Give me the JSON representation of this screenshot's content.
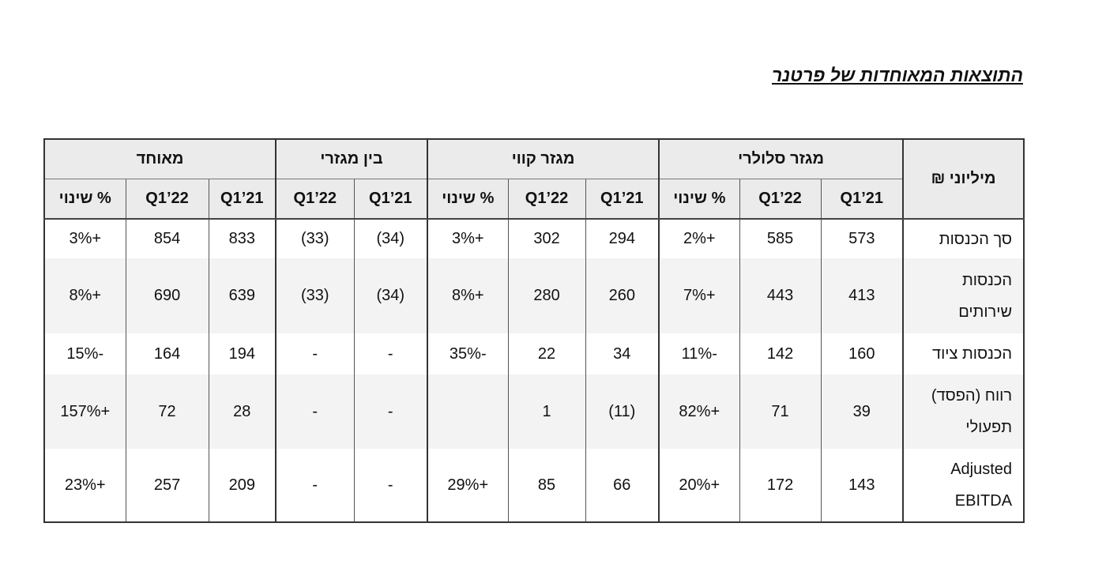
{
  "header": {
    "title": "התוצאות המאוחדות של פרטנר"
  },
  "table": {
    "unit_label": "מיליוני ₪",
    "groups": [
      "מגזר סלולרי",
      "מגזר קווי",
      "בין מגזרי",
      "מאוחד"
    ],
    "subheaders": [
      "Q1’21",
      "Q1’22",
      "% שינוי",
      "Q1’21",
      "Q1’22",
      "% שינוי",
      "Q1’21",
      "Q1’22",
      "Q1’21",
      "Q1’22",
      "% שינוי"
    ],
    "rows": [
      {
        "label": "סך הכנסות",
        "cells": [
          "573",
          "585",
          "+2%",
          "294",
          "302",
          "+3%",
          "(34)",
          "(33)",
          "833",
          "854",
          "+3%"
        ]
      },
      {
        "label": "הכנסות שירותים",
        "cells": [
          "413",
          "443",
          "+7%",
          "260",
          "280",
          "+8%",
          "(34)",
          "(33)",
          "639",
          "690",
          "+8%"
        ]
      },
      {
        "label": "הכנסות ציוד",
        "cells": [
          "160",
          "142",
          "-11%",
          "34",
          "22",
          "-35%",
          "-",
          "-",
          "194",
          "164",
          "-15%"
        ]
      },
      {
        "label": "רווח (הפסד) תפעולי",
        "cells": [
          "39",
          "71",
          "+82%",
          "(11)",
          "1",
          null,
          "-",
          "-",
          "28",
          "72",
          "+157%"
        ]
      },
      {
        "label": "Adjusted EBITDA",
        "cells": [
          "143",
          "172",
          "+20%",
          "66",
          "85",
          "+29%",
          "-",
          "-",
          "209",
          "257",
          "+23%"
        ]
      }
    ]
  }
}
